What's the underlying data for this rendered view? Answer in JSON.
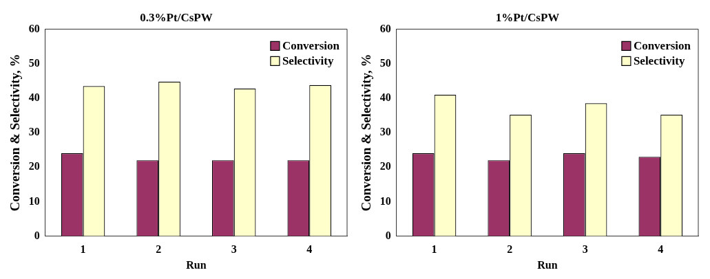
{
  "chart_data": [
    {
      "type": "bar",
      "title": "0.3%Pt/CsPW",
      "xlabel": "Run",
      "ylabel": "Conversion & Selectivity, %",
      "categories": [
        "1",
        "2",
        "3",
        "4"
      ],
      "series": [
        {
          "name": "Conversion",
          "color": "#9b3366",
          "values": [
            24,
            22,
            22,
            22
          ]
        },
        {
          "name": "Selectivity",
          "color": "#ffffcc",
          "values": [
            43.5,
            44.8,
            42.8,
            43.8
          ]
        }
      ],
      "ylim": [
        0,
        60
      ],
      "yticks": [
        0,
        10,
        20,
        30,
        40,
        50,
        60
      ],
      "legend": "top right"
    },
    {
      "type": "bar",
      "title": "1%Pt/CsPW",
      "xlabel": "Run",
      "ylabel": "Conversion & Selectivity, %",
      "categories": [
        "1",
        "2",
        "3",
        "4"
      ],
      "series": [
        {
          "name": "Conversion",
          "color": "#9b3366",
          "values": [
            24,
            22,
            24,
            23
          ]
        },
        {
          "name": "Selectivity",
          "color": "#ffffcc",
          "values": [
            41,
            35.2,
            38.5,
            35.2
          ]
        }
      ],
      "ylim": [
        0,
        60
      ],
      "yticks": [
        0,
        10,
        20,
        30,
        40,
        50,
        60
      ],
      "legend": "top right"
    }
  ]
}
